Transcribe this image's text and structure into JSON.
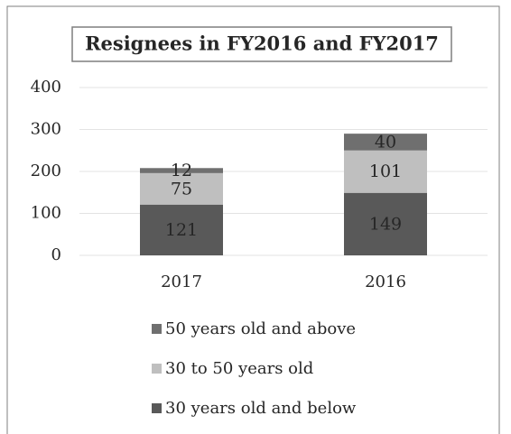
{
  "chart_data": {
    "type": "stacked_bar",
    "title": "Resignees in FY2016 and FY2017",
    "categories": [
      "2017",
      "2016"
    ],
    "series": [
      {
        "name": "50 years old and above",
        "color": "#6f6f6f",
        "values": [
          12,
          40
        ]
      },
      {
        "name": "30 to 50 years old",
        "color": "#bfbfbf",
        "values": [
          75,
          101
        ]
      },
      {
        "name": "30 years old and below",
        "color": "#595959",
        "values": [
          121,
          149
        ]
      }
    ],
    "ylim": [
      0,
      400
    ],
    "yticks": [
      0,
      100,
      200,
      300,
      400
    ],
    "grid": true
  }
}
